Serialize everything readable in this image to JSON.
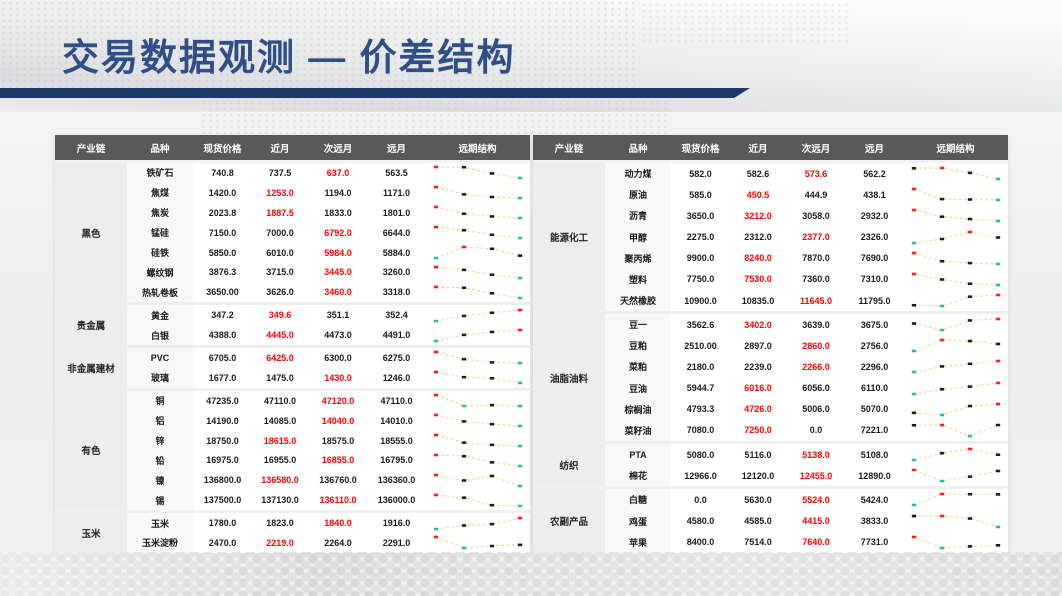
{
  "title": "交易数据观测 — 价差结构",
  "theme": {
    "title_color": "#2e4e87",
    "bar_color": "#1c3a69",
    "header_bg": "#595959",
    "red_value_color": "#ff0000"
  },
  "spark_colors": {
    "line": "#f3d47d",
    "max": "#ff1f1f",
    "min": "#2fbf8f",
    "mid": "#1f1f1f"
  },
  "tables": [
    {
      "columns": [
        "产业链",
        "品种",
        "现货价格",
        "近月",
        "次远月",
        "远月",
        "远期结构"
      ],
      "groups": [
        {
          "chain": "黑色",
          "rows": [
            {
              "name": "铁矿石",
              "values": [
                "740.8",
                "737.5",
                "637.0",
                "563.5"
              ],
              "red": 2
            },
            {
              "name": "焦煤",
              "values": [
                "1420.0",
                "1253.0",
                "1194.0",
                "1171.0"
              ],
              "red": 1
            },
            {
              "name": "焦炭",
              "values": [
                "2023.8",
                "1887.5",
                "1833.0",
                "1801.0"
              ],
              "red": 1
            },
            {
              "name": "锰硅",
              "values": [
                "7150.0",
                "7000.0",
                "6792.0",
                "6644.0"
              ],
              "red": 2
            },
            {
              "name": "硅铁",
              "values": [
                "5850.0",
                "6010.0",
                "5984.0",
                "5884.0"
              ],
              "red": 2
            },
            {
              "name": "螺纹钢",
              "values": [
                "3876.3",
                "3715.0",
                "3445.0",
                "3260.0"
              ],
              "red": 2
            },
            {
              "name": "热轧卷板",
              "values": [
                "3650.00",
                "3626.0",
                "3460.0",
                "3318.0"
              ],
              "red": 2
            }
          ]
        },
        {
          "chain": "贵金属",
          "rows": [
            {
              "name": "黄金",
              "values": [
                "347.2",
                "349.6",
                "351.1",
                "352.4"
              ],
              "red": 1
            },
            {
              "name": "白银",
              "values": [
                "4388.0",
                "4445.0",
                "4473.0",
                "4491.0"
              ],
              "red": 1
            }
          ]
        },
        {
          "chain": "非金属建材",
          "rows": [
            {
              "name": "PVC",
              "values": [
                "6705.0",
                "6425.0",
                "6300.0",
                "6275.0"
              ],
              "red": 1
            },
            {
              "name": "玻璃",
              "values": [
                "1677.0",
                "1475.0",
                "1430.0",
                "1246.0"
              ],
              "red": 2
            }
          ]
        },
        {
          "chain": "有色",
          "rows": [
            {
              "name": "铜",
              "values": [
                "47235.0",
                "47110.0",
                "47120.0",
                "47110.0"
              ],
              "red": 2
            },
            {
              "name": "铝",
              "values": [
                "14190.0",
                "14085.0",
                "14040.0",
                "14010.0"
              ],
              "red": 2
            },
            {
              "name": "锌",
              "values": [
                "18750.0",
                "18615.0",
                "18575.0",
                "18555.0"
              ],
              "red": 1
            },
            {
              "name": "铅",
              "values": [
                "16975.0",
                "16955.0",
                "16855.0",
                "16795.0"
              ],
              "red": 2
            },
            {
              "name": "镍",
              "values": [
                "136800.0",
                "136580.0",
                "136760.0",
                "136360.0"
              ],
              "red": 1
            },
            {
              "name": "锡",
              "values": [
                "137500.0",
                "137130.0",
                "136110.0",
                "136000.0"
              ],
              "red": 2
            }
          ]
        },
        {
          "chain": "玉米",
          "rows": [
            {
              "name": "玉米",
              "values": [
                "1780.0",
                "1823.0",
                "1840.0",
                "1916.0"
              ],
              "red": 2
            },
            {
              "name": "玉米淀粉",
              "values": [
                "2470.0",
                "2219.0",
                "2264.0",
                "2291.0"
              ],
              "red": 1
            }
          ]
        }
      ]
    },
    {
      "columns": [
        "产业链",
        "品种",
        "现货价格",
        "近月",
        "次远月",
        "远月",
        "远期结构"
      ],
      "groups": [
        {
          "chain": "能源化工",
          "rows": [
            {
              "name": "动力煤",
              "values": [
                "582.0",
                "582.6",
                "573.6",
                "562.2"
              ],
              "red": 2
            },
            {
              "name": "原油",
              "values": [
                "585.0",
                "450.5",
                "444.9",
                "438.1"
              ],
              "red": 1
            },
            {
              "name": "沥青",
              "values": [
                "3650.0",
                "3212.0",
                "3058.0",
                "2932.0"
              ],
              "red": 1
            },
            {
              "name": "甲醇",
              "values": [
                "2275.0",
                "2312.0",
                "2377.0",
                "2326.0"
              ],
              "red": 2
            },
            {
              "name": "聚丙烯",
              "values": [
                "9900.0",
                "8240.0",
                "7870.0",
                "7690.0"
              ],
              "red": 1
            },
            {
              "name": "塑料",
              "values": [
                "7750.0",
                "7530.0",
                "7360.0",
                "7310.0"
              ],
              "red": 1
            },
            {
              "name": "天然橡胶",
              "values": [
                "10900.0",
                "10835.0",
                "11645.0",
                "11795.0"
              ],
              "red": 2
            }
          ]
        },
        {
          "chain": "油脂油料",
          "rows": [
            {
              "name": "豆一",
              "values": [
                "3562.6",
                "3402.0",
                "3639.0",
                "3675.0"
              ],
              "red": 1
            },
            {
              "name": "豆粕",
              "values": [
                "2510.00",
                "2897.0",
                "2860.0",
                "2756.0"
              ],
              "red": 2
            },
            {
              "name": "菜粕",
              "values": [
                "2180.0",
                "2239.0",
                "2266.0",
                "2296.0"
              ],
              "red": 2
            },
            {
              "name": "豆油",
              "values": [
                "5944.7",
                "6016.0",
                "6056.0",
                "6110.0"
              ],
              "red": 1
            },
            {
              "name": "棕榈油",
              "values": [
                "4793.3",
                "4726.0",
                "5006.0",
                "5070.0"
              ],
              "red": 1
            },
            {
              "name": "菜籽油",
              "values": [
                "7080.0",
                "7250.0",
                "0.0",
                "7221.0"
              ],
              "red": 1
            }
          ]
        },
        {
          "chain": "纺织",
          "rows": [
            {
              "name": "PTA",
              "values": [
                "5080.0",
                "5116.0",
                "5138.0",
                "5108.0"
              ],
              "red": 2
            },
            {
              "name": "棉花",
              "values": [
                "12966.0",
                "12120.0",
                "12455.0",
                "12890.0"
              ],
              "red": 2
            }
          ]
        },
        {
          "chain": "农副产品",
          "rows": [
            {
              "name": "白糖",
              "values": [
                "0.0",
                "5630.0",
                "5524.0",
                "5424.0"
              ],
              "red": 2
            },
            {
              "name": "鸡蛋",
              "values": [
                "4580.0",
                "4585.0",
                "4415.0",
                "3833.0"
              ],
              "red": 2
            },
            {
              "name": "苹果",
              "values": [
                "8400.0",
                "7514.0",
                "7640.0",
                "7731.0"
              ],
              "red": 2
            }
          ]
        }
      ]
    }
  ]
}
